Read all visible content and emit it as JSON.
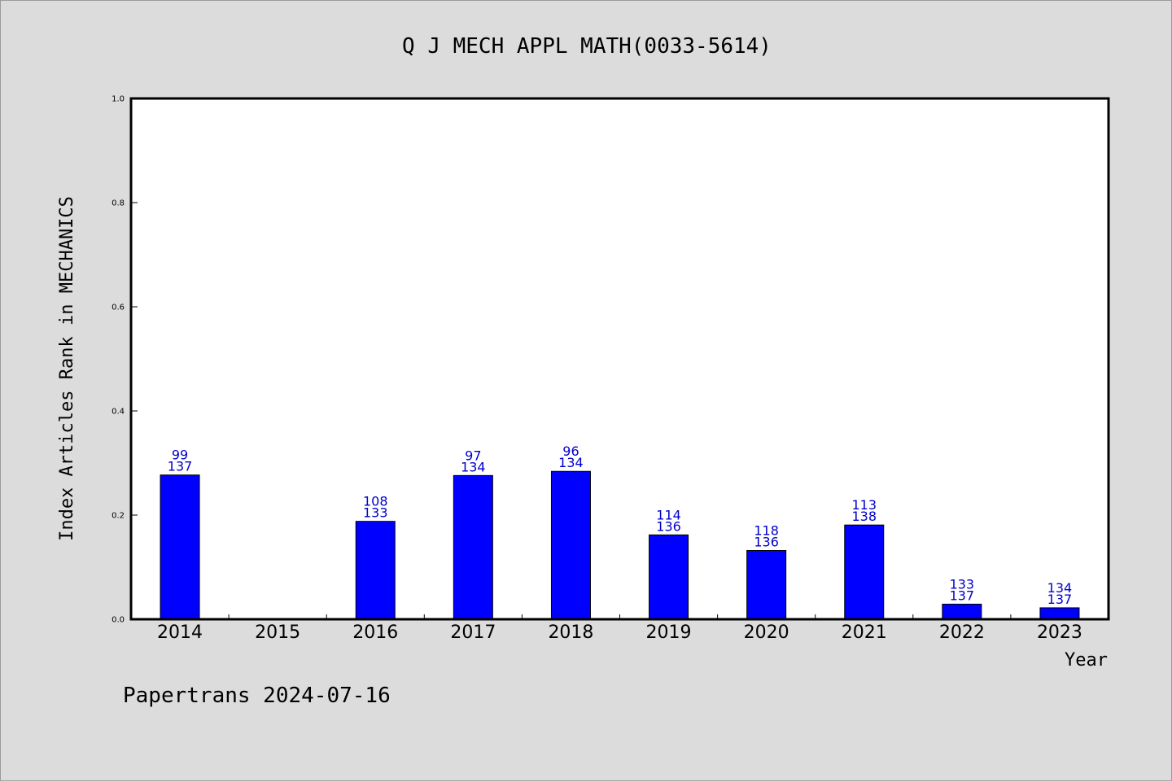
{
  "chart_data": {
    "type": "bar",
    "title": "Q J MECH APPL MATH(0033-5614)",
    "xlabel": "Year",
    "ylabel": "Index Articles Rank in MECHANICS",
    "ylim": [
      0,
      1.0
    ],
    "yticks": [
      "0.0",
      "0.2",
      "0.4",
      "0.6",
      "0.8",
      "1.0"
    ],
    "categories": [
      "2014",
      "2015",
      "2016",
      "2017",
      "2018",
      "2019",
      "2020",
      "2021",
      "2022",
      "2023"
    ],
    "values": [
      0.277,
      null,
      0.188,
      0.276,
      0.284,
      0.162,
      0.132,
      0.181,
      0.029,
      0.022
    ],
    "rank_labels": [
      "99",
      "",
      "108",
      "97",
      "96",
      "114",
      "118",
      "113",
      "133",
      "134"
    ],
    "total_labels": [
      "137",
      "",
      "133",
      "134",
      "134",
      "136",
      "136",
      "138",
      "137",
      "137"
    ],
    "bar_color": "#0000ff",
    "label_color": "#0000cc",
    "grid": false,
    "legend": "none"
  },
  "footer": {
    "text": "Papertrans 2024-07-16"
  }
}
